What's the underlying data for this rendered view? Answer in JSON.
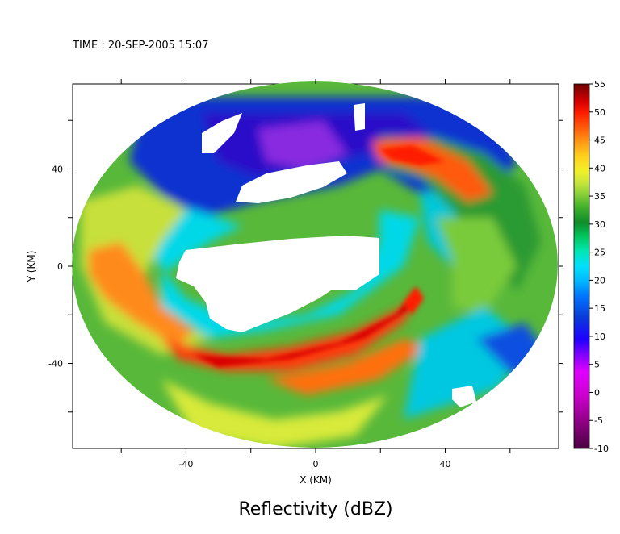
{
  "chart_data": {
    "type": "heatmap",
    "time_label": "TIME : 20-SEP-2005 15:07",
    "title": "Reflectivity (dBZ)",
    "xlabel": "X (KM)",
    "ylabel": "Y (KM)",
    "xlim": [
      -75,
      75
    ],
    "ylim": [
      -75,
      75
    ],
    "x_ticks": [
      -40,
      0,
      40
    ],
    "y_ticks": [
      -40,
      0,
      40
    ],
    "x_tick_labels": [
      "-40",
      "0",
      "40"
    ],
    "y_tick_labels": [
      "-40",
      "0",
      "40"
    ],
    "colorbar": {
      "levels": [
        -10,
        -5,
        0,
        5,
        10,
        15,
        20,
        25,
        30,
        35,
        40,
        45,
        50,
        55
      ],
      "tick_labels": [
        "-10",
        "-5",
        "0",
        "5",
        "10",
        "15",
        "20",
        "25",
        "30",
        "35",
        "40",
        "45",
        "50",
        "55"
      ],
      "colors": [
        "#4a0040",
        "#8a0080",
        "#c800c8",
        "#e000ff",
        "#7a00ff",
        "#1e00ff",
        "#0b3ad8",
        "#0077ff",
        "#00b8ff",
        "#00e0ff",
        "#00e6b4",
        "#00c860",
        "#0f8c2a",
        "#3fae2a",
        "#8fd13a",
        "#c8e63a",
        "#f0f02a",
        "#ffd21e",
        "#ff9a14",
        "#ff5a0a",
        "#ff1e00",
        "#d80000",
        "#9a0000",
        "#6a0000"
      ]
    },
    "grid": false
  }
}
